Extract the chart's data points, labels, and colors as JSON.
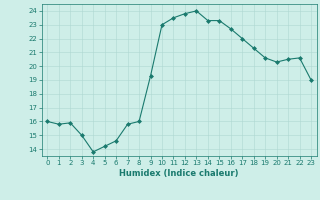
{
  "x": [
    0,
    1,
    2,
    3,
    4,
    5,
    6,
    7,
    8,
    9,
    10,
    11,
    12,
    13,
    14,
    15,
    16,
    17,
    18,
    19,
    20,
    21,
    22,
    23
  ],
  "y": [
    16.0,
    15.8,
    15.9,
    15.0,
    13.8,
    14.2,
    14.6,
    15.8,
    16.0,
    19.3,
    23.0,
    23.5,
    23.8,
    24.0,
    23.3,
    23.3,
    22.7,
    22.0,
    21.3,
    20.6,
    20.3,
    20.5,
    20.6,
    19.0
  ],
  "line_color": "#1a7a6e",
  "marker": "D",
  "marker_size": 2.0,
  "bg_color": "#ceeee8",
  "grid_color": "#aed8d2",
  "xlabel": "Humidex (Indice chaleur)",
  "ylabel": "",
  "xlim": [
    -0.5,
    23.5
  ],
  "ylim": [
    13.5,
    24.5
  ],
  "yticks": [
    14,
    15,
    16,
    17,
    18,
    19,
    20,
    21,
    22,
    23,
    24
  ],
  "xticks": [
    0,
    1,
    2,
    3,
    4,
    5,
    6,
    7,
    8,
    9,
    10,
    11,
    12,
    13,
    14,
    15,
    16,
    17,
    18,
    19,
    20,
    21,
    22,
    23
  ],
  "tick_fontsize": 5.0,
  "xlabel_fontsize": 6.0,
  "tick_color": "#1a7a6e",
  "label_color": "#1a7a6e",
  "spine_color": "#1a7a6e",
  "linewidth": 0.8,
  "grid_linewidth": 0.4
}
